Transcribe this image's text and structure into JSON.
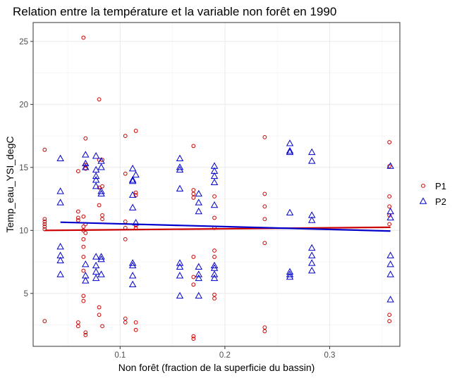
{
  "chart_data": {
    "type": "scatter",
    "title": "Relation entre la température et la variable non forêt en 1990",
    "xlabel": "Non forêt (fraction de la superficie du bassin)",
    "ylabel": "Temp_eau_YSI_degC",
    "xlim": [
      0.017,
      0.367
    ],
    "ylim": [
      0.8,
      26.5
    ],
    "xticks": [
      0.1,
      0.2,
      0.3
    ],
    "xtick_labels": [
      "0.1",
      "0.2",
      "0.3"
    ],
    "yticks": [
      5,
      10,
      15,
      20,
      25
    ],
    "ytick_labels": [
      "5",
      "10",
      "15",
      "20",
      "25"
    ],
    "grid": true,
    "legend_position": "right",
    "series": [
      {
        "name": "P1",
        "marker": "circle",
        "color": "#cc0000",
        "trend": {
          "x": [
            0.028,
            0.358
          ],
          "y": [
            10.0,
            10.25
          ]
        },
        "points": [
          {
            "x": 0.028,
            "y": 16.4
          },
          {
            "x": 0.028,
            "y": 10.9
          },
          {
            "x": 0.028,
            "y": 10.7
          },
          {
            "x": 0.028,
            "y": 10.5
          },
          {
            "x": 0.028,
            "y": 10.3
          },
          {
            "x": 0.028,
            "y": 10.1
          },
          {
            "x": 0.028,
            "y": 2.8
          },
          {
            "x": 0.06,
            "y": 14.7
          },
          {
            "x": 0.06,
            "y": 11.5
          },
          {
            "x": 0.06,
            "y": 11.0
          },
          {
            "x": 0.06,
            "y": 10.8
          },
          {
            "x": 0.06,
            "y": 2.7
          },
          {
            "x": 0.06,
            "y": 2.4
          },
          {
            "x": 0.065,
            "y": 25.3
          },
          {
            "x": 0.065,
            "y": 11.1
          },
          {
            "x": 0.065,
            "y": 10.3
          },
          {
            "x": 0.065,
            "y": 10.0
          },
          {
            "x": 0.065,
            "y": 9.3
          },
          {
            "x": 0.065,
            "y": 8.7
          },
          {
            "x": 0.065,
            "y": 7.9
          },
          {
            "x": 0.065,
            "y": 6.8
          },
          {
            "x": 0.065,
            "y": 4.8
          },
          {
            "x": 0.065,
            "y": 4.4
          },
          {
            "x": 0.067,
            "y": 17.3
          },
          {
            "x": 0.067,
            "y": 15.2
          },
          {
            "x": 0.067,
            "y": 14.9
          },
          {
            "x": 0.067,
            "y": 10.5
          },
          {
            "x": 0.067,
            "y": 9.8
          },
          {
            "x": 0.067,
            "y": 1.9
          },
          {
            "x": 0.067,
            "y": 1.7
          },
          {
            "x": 0.08,
            "y": 20.4
          },
          {
            "x": 0.08,
            "y": 15.6
          },
          {
            "x": 0.08,
            "y": 13.4
          },
          {
            "x": 0.08,
            "y": 12.0
          },
          {
            "x": 0.08,
            "y": 3.9
          },
          {
            "x": 0.08,
            "y": 3.3
          },
          {
            "x": 0.083,
            "y": 15.6
          },
          {
            "x": 0.083,
            "y": 13.5
          },
          {
            "x": 0.083,
            "y": 11.2
          },
          {
            "x": 0.083,
            "y": 10.9
          },
          {
            "x": 0.083,
            "y": 2.4
          },
          {
            "x": 0.105,
            "y": 17.5
          },
          {
            "x": 0.105,
            "y": 14.5
          },
          {
            "x": 0.105,
            "y": 10.7
          },
          {
            "x": 0.105,
            "y": 10.2
          },
          {
            "x": 0.105,
            "y": 9.3
          },
          {
            "x": 0.105,
            "y": 3.0
          },
          {
            "x": 0.105,
            "y": 2.7
          },
          {
            "x": 0.115,
            "y": 17.9
          },
          {
            "x": 0.115,
            "y": 13.0
          },
          {
            "x": 0.115,
            "y": 12.8
          },
          {
            "x": 0.115,
            "y": 10.4
          },
          {
            "x": 0.115,
            "y": 10.2
          },
          {
            "x": 0.115,
            "y": 2.7
          },
          {
            "x": 0.115,
            "y": 2.1
          },
          {
            "x": 0.17,
            "y": 16.7
          },
          {
            "x": 0.17,
            "y": 13.2
          },
          {
            "x": 0.17,
            "y": 12.9
          },
          {
            "x": 0.17,
            "y": 12.6
          },
          {
            "x": 0.17,
            "y": 7.9
          },
          {
            "x": 0.17,
            "y": 6.3
          },
          {
            "x": 0.17,
            "y": 5.7
          },
          {
            "x": 0.17,
            "y": 1.6
          },
          {
            "x": 0.17,
            "y": 1.4
          },
          {
            "x": 0.19,
            "y": 12.7
          },
          {
            "x": 0.19,
            "y": 11.0
          },
          {
            "x": 0.19,
            "y": 10.2
          },
          {
            "x": 0.19,
            "y": 8.4
          },
          {
            "x": 0.19,
            "y": 7.9
          },
          {
            "x": 0.19,
            "y": 4.9
          },
          {
            "x": 0.19,
            "y": 4.6
          },
          {
            "x": 0.238,
            "y": 17.4
          },
          {
            "x": 0.238,
            "y": 12.9
          },
          {
            "x": 0.238,
            "y": 11.9
          },
          {
            "x": 0.238,
            "y": 10.9
          },
          {
            "x": 0.238,
            "y": 9.0
          },
          {
            "x": 0.238,
            "y": 2.3
          },
          {
            "x": 0.238,
            "y": 2.0
          },
          {
            "x": 0.357,
            "y": 17.0
          },
          {
            "x": 0.357,
            "y": 15.1
          },
          {
            "x": 0.357,
            "y": 12.7
          },
          {
            "x": 0.357,
            "y": 11.9
          },
          {
            "x": 0.357,
            "y": 11.2
          },
          {
            "x": 0.357,
            "y": 10.5
          },
          {
            "x": 0.357,
            "y": 3.3
          },
          {
            "x": 0.357,
            "y": 2.8
          }
        ]
      },
      {
        "name": "P2",
        "marker": "triangle",
        "color": "#0000cc",
        "trend": {
          "x": [
            0.043,
            0.358
          ],
          "y": [
            10.65,
            9.95
          ]
        },
        "points": [
          {
            "x": 0.043,
            "y": 15.7
          },
          {
            "x": 0.043,
            "y": 13.1
          },
          {
            "x": 0.043,
            "y": 12.2
          },
          {
            "x": 0.043,
            "y": 8.7
          },
          {
            "x": 0.043,
            "y": 8.0
          },
          {
            "x": 0.043,
            "y": 7.6
          },
          {
            "x": 0.043,
            "y": 6.5
          },
          {
            "x": 0.067,
            "y": 16.0
          },
          {
            "x": 0.067,
            "y": 15.3
          },
          {
            "x": 0.067,
            "y": 15.0
          },
          {
            "x": 0.067,
            "y": 7.3
          },
          {
            "x": 0.067,
            "y": 6.4
          },
          {
            "x": 0.067,
            "y": 6.0
          },
          {
            "x": 0.077,
            "y": 15.9
          },
          {
            "x": 0.077,
            "y": 14.8
          },
          {
            "x": 0.077,
            "y": 14.3
          },
          {
            "x": 0.077,
            "y": 14.0
          },
          {
            "x": 0.077,
            "y": 13.5
          },
          {
            "x": 0.077,
            "y": 7.9
          },
          {
            "x": 0.077,
            "y": 7.2
          },
          {
            "x": 0.077,
            "y": 6.7
          },
          {
            "x": 0.077,
            "y": 6.2
          },
          {
            "x": 0.082,
            "y": 15.5
          },
          {
            "x": 0.082,
            "y": 15.0
          },
          {
            "x": 0.082,
            "y": 13.1
          },
          {
            "x": 0.082,
            "y": 12.9
          },
          {
            "x": 0.082,
            "y": 7.9
          },
          {
            "x": 0.082,
            "y": 7.7
          },
          {
            "x": 0.082,
            "y": 6.5
          },
          {
            "x": 0.112,
            "y": 14.9
          },
          {
            "x": 0.112,
            "y": 14.0
          },
          {
            "x": 0.112,
            "y": 13.9
          },
          {
            "x": 0.112,
            "y": 12.8
          },
          {
            "x": 0.112,
            "y": 11.8
          },
          {
            "x": 0.112,
            "y": 7.4
          },
          {
            "x": 0.112,
            "y": 7.2
          },
          {
            "x": 0.112,
            "y": 6.4
          },
          {
            "x": 0.112,
            "y": 5.7
          },
          {
            "x": 0.115,
            "y": 14.4
          },
          {
            "x": 0.115,
            "y": 10.6
          },
          {
            "x": 0.157,
            "y": 15.7
          },
          {
            "x": 0.157,
            "y": 15.0
          },
          {
            "x": 0.157,
            "y": 14.8
          },
          {
            "x": 0.157,
            "y": 13.3
          },
          {
            "x": 0.157,
            "y": 7.4
          },
          {
            "x": 0.157,
            "y": 7.1
          },
          {
            "x": 0.157,
            "y": 6.4
          },
          {
            "x": 0.157,
            "y": 4.8
          },
          {
            "x": 0.175,
            "y": 12.9
          },
          {
            "x": 0.175,
            "y": 12.2
          },
          {
            "x": 0.175,
            "y": 11.5
          },
          {
            "x": 0.175,
            "y": 7.1
          },
          {
            "x": 0.175,
            "y": 6.5
          },
          {
            "x": 0.175,
            "y": 6.2
          },
          {
            "x": 0.175,
            "y": 4.8
          },
          {
            "x": 0.19,
            "y": 15.1
          },
          {
            "x": 0.19,
            "y": 14.7
          },
          {
            "x": 0.19,
            "y": 14.3
          },
          {
            "x": 0.19,
            "y": 13.8
          },
          {
            "x": 0.19,
            "y": 12.0
          },
          {
            "x": 0.19,
            "y": 7.2
          },
          {
            "x": 0.19,
            "y": 7.0
          },
          {
            "x": 0.19,
            "y": 6.5
          },
          {
            "x": 0.19,
            "y": 6.2
          },
          {
            "x": 0.262,
            "y": 16.9
          },
          {
            "x": 0.262,
            "y": 16.3
          },
          {
            "x": 0.262,
            "y": 16.2
          },
          {
            "x": 0.262,
            "y": 11.4
          },
          {
            "x": 0.262,
            "y": 6.7
          },
          {
            "x": 0.262,
            "y": 6.5
          },
          {
            "x": 0.262,
            "y": 6.3
          },
          {
            "x": 0.283,
            "y": 16.2
          },
          {
            "x": 0.283,
            "y": 15.5
          },
          {
            "x": 0.283,
            "y": 11.2
          },
          {
            "x": 0.283,
            "y": 10.8
          },
          {
            "x": 0.283,
            "y": 8.6
          },
          {
            "x": 0.283,
            "y": 8.0
          },
          {
            "x": 0.283,
            "y": 7.4
          },
          {
            "x": 0.283,
            "y": 6.8
          },
          {
            "x": 0.358,
            "y": 15.1
          },
          {
            "x": 0.358,
            "y": 11.5
          },
          {
            "x": 0.358,
            "y": 11.0
          },
          {
            "x": 0.358,
            "y": 8.0
          },
          {
            "x": 0.358,
            "y": 7.3
          },
          {
            "x": 0.358,
            "y": 6.5
          },
          {
            "x": 0.358,
            "y": 4.5
          }
        ]
      }
    ]
  }
}
